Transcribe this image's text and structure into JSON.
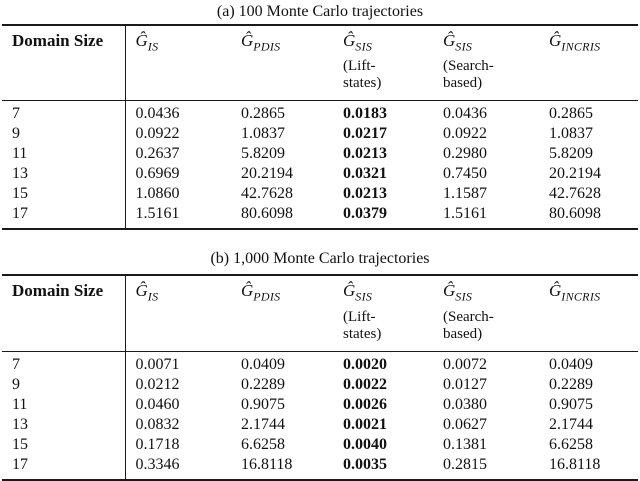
{
  "page": {
    "background": "#ffffff",
    "text_color": "#111111",
    "rule_color": "#1a1a1a"
  },
  "tables": [
    {
      "caption": "(a) 100 Monte Carlo trajectories",
      "columns": [
        {
          "label": "Domain Size"
        },
        {
          "symbol": "Ĝ",
          "subscript": "IS"
        },
        {
          "symbol": "Ĝ",
          "subscript": "PDIS"
        },
        {
          "symbol": "Ĝ",
          "subscript": "SIS",
          "qualifier_line1": "(Lift-",
          "qualifier_line2": "states)"
        },
        {
          "symbol": "Ĝ",
          "subscript": "SIS",
          "qualifier_line1": "(Search-",
          "qualifier_line2": "based)"
        },
        {
          "symbol": "Ĝ",
          "subscript": "INCRIS"
        }
      ],
      "rows": [
        {
          "domain_size": "7",
          "g_is": "0.0436",
          "g_pdis": "0.2865",
          "g_sis_lift": "0.0183",
          "g_sis_search": "0.0436",
          "g_incris": "0.2865"
        },
        {
          "domain_size": "9",
          "g_is": "0.0922",
          "g_pdis": "1.0837",
          "g_sis_lift": "0.0217",
          "g_sis_search": "0.0922",
          "g_incris": "1.0837"
        },
        {
          "domain_size": "11",
          "g_is": "0.2637",
          "g_pdis": "5.8209",
          "g_sis_lift": "0.0213",
          "g_sis_search": "0.2980",
          "g_incris": "5.8209"
        },
        {
          "domain_size": "13",
          "g_is": "0.6969",
          "g_pdis": "20.2194",
          "g_sis_lift": "0.0321",
          "g_sis_search": "0.7450",
          "g_incris": "20.2194"
        },
        {
          "domain_size": "15",
          "g_is": "1.0860",
          "g_pdis": "42.7628",
          "g_sis_lift": "0.0213",
          "g_sis_search": "1.1587",
          "g_incris": "42.7628"
        },
        {
          "domain_size": "17",
          "g_is": "1.5161",
          "g_pdis": "80.6098",
          "g_sis_lift": "0.0379",
          "g_sis_search": "1.5161",
          "g_incris": "80.6098"
        }
      ]
    },
    {
      "caption": "(b) 1,000 Monte Carlo trajectories",
      "columns": [
        {
          "label": "Domain Size"
        },
        {
          "symbol": "Ĝ",
          "subscript": "IS"
        },
        {
          "symbol": "Ĝ",
          "subscript": "PDIS"
        },
        {
          "symbol": "Ĝ",
          "subscript": "SIS",
          "qualifier_line1": "(Lift-",
          "qualifier_line2": "states)"
        },
        {
          "symbol": "Ĝ",
          "subscript": "SIS",
          "qualifier_line1": "(Search-",
          "qualifier_line2": "based)"
        },
        {
          "symbol": "Ĝ",
          "subscript": "INCRIS"
        }
      ],
      "rows": [
        {
          "domain_size": "7",
          "g_is": "0.0071",
          "g_pdis": "0.0409",
          "g_sis_lift": "0.0020",
          "g_sis_search": "0.0072",
          "g_incris": "0.0409"
        },
        {
          "domain_size": "9",
          "g_is": "0.0212",
          "g_pdis": "0.2289",
          "g_sis_lift": "0.0022",
          "g_sis_search": "0.0127",
          "g_incris": "0.2289"
        },
        {
          "domain_size": "11",
          "g_is": "0.0460",
          "g_pdis": "0.9075",
          "g_sis_lift": "0.0026",
          "g_sis_search": "0.0380",
          "g_incris": "0.9075"
        },
        {
          "domain_size": "13",
          "g_is": "0.0832",
          "g_pdis": "2.1744",
          "g_sis_lift": "0.0021",
          "g_sis_search": "0.0627",
          "g_incris": "2.1744"
        },
        {
          "domain_size": "15",
          "g_is": "0.1718",
          "g_pdis": "6.6258",
          "g_sis_lift": "0.0040",
          "g_sis_search": "0.1381",
          "g_incris": "6.6258"
        },
        {
          "domain_size": "17",
          "g_is": "0.3346",
          "g_pdis": "16.8118",
          "g_sis_lift": "0.0035",
          "g_sis_search": "0.2815",
          "g_incris": "16.8118"
        }
      ]
    }
  ]
}
